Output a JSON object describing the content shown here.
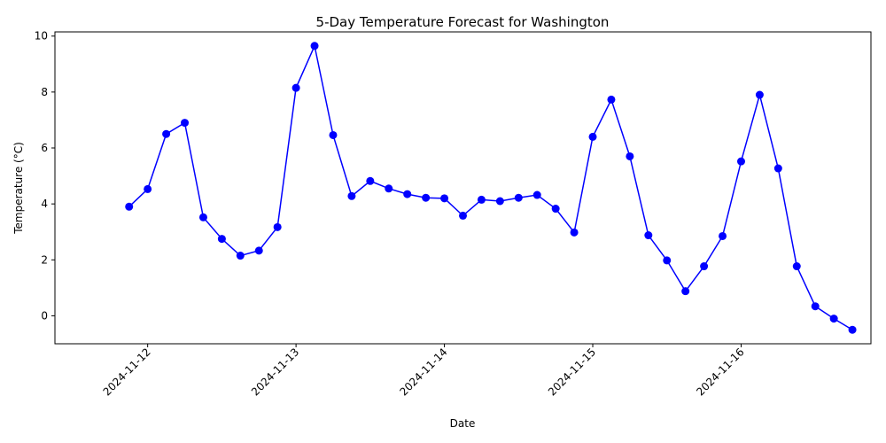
{
  "chart_data": {
    "type": "line",
    "title": "5-Day Temperature Forecast for Washington",
    "xlabel": "Date",
    "ylabel": "Temperature (°C)",
    "x_ticks": [
      "2024-11-12",
      "2024-11-13",
      "2024-11-14",
      "2024-11-15",
      "2024-11-16"
    ],
    "y_ticks": [
      0,
      2,
      4,
      6,
      8,
      10
    ],
    "xlim": [
      "2024-11-11 09:00",
      "2024-11-16 21:00"
    ],
    "ylim": [
      -1.0,
      10.15
    ],
    "grid": false,
    "legend": "none",
    "series": [
      {
        "color": "#0000ff",
        "marker": "circle",
        "points": [
          {
            "x": "2024-11-11 21:00",
            "y": 3.9
          },
          {
            "x": "2024-11-12 00:00",
            "y": 4.53
          },
          {
            "x": "2024-11-12 03:00",
            "y": 6.5
          },
          {
            "x": "2024-11-12 06:00",
            "y": 6.9
          },
          {
            "x": "2024-11-12 09:00",
            "y": 3.52
          },
          {
            "x": "2024-11-12 12:00",
            "y": 2.75
          },
          {
            "x": "2024-11-12 15:00",
            "y": 2.15
          },
          {
            "x": "2024-11-12 18:00",
            "y": 2.33
          },
          {
            "x": "2024-11-12 21:00",
            "y": 3.17
          },
          {
            "x": "2024-11-13 00:00",
            "y": 8.15
          },
          {
            "x": "2024-11-13 03:00",
            "y": 9.65
          },
          {
            "x": "2024-11-13 06:00",
            "y": 6.46
          },
          {
            "x": "2024-11-13 09:00",
            "y": 4.28
          },
          {
            "x": "2024-11-13 12:00",
            "y": 4.82
          },
          {
            "x": "2024-11-13 15:00",
            "y": 4.55
          },
          {
            "x": "2024-11-13 18:00",
            "y": 4.35
          },
          {
            "x": "2024-11-13 21:00",
            "y": 4.22
          },
          {
            "x": "2024-11-14 00:00",
            "y": 4.2
          },
          {
            "x": "2024-11-14 03:00",
            "y": 3.58
          },
          {
            "x": "2024-11-14 06:00",
            "y": 4.15
          },
          {
            "x": "2024-11-14 09:00",
            "y": 4.1
          },
          {
            "x": "2024-11-14 12:00",
            "y": 4.22
          },
          {
            "x": "2024-11-14 15:00",
            "y": 4.32
          },
          {
            "x": "2024-11-14 18:00",
            "y": 3.83
          },
          {
            "x": "2024-11-14 21:00",
            "y": 2.98
          },
          {
            "x": "2024-11-15 00:00",
            "y": 6.4
          },
          {
            "x": "2024-11-15 03:00",
            "y": 7.73
          },
          {
            "x": "2024-11-15 06:00",
            "y": 5.7
          },
          {
            "x": "2024-11-15 09:00",
            "y": 2.88
          },
          {
            "x": "2024-11-15 12:00",
            "y": 1.98
          },
          {
            "x": "2024-11-15 15:00",
            "y": 0.88
          },
          {
            "x": "2024-11-15 18:00",
            "y": 1.77
          },
          {
            "x": "2024-11-15 21:00",
            "y": 2.85
          },
          {
            "x": "2024-11-16 00:00",
            "y": 5.52
          },
          {
            "x": "2024-11-16 03:00",
            "y": 7.9
          },
          {
            "x": "2024-11-16 06:00",
            "y": 5.27
          },
          {
            "x": "2024-11-16 09:00",
            "y": 1.77
          },
          {
            "x": "2024-11-16 12:00",
            "y": 0.34
          },
          {
            "x": "2024-11-16 15:00",
            "y": -0.1
          },
          {
            "x": "2024-11-16 18:00",
            "y": -0.5
          }
        ]
      }
    ]
  }
}
